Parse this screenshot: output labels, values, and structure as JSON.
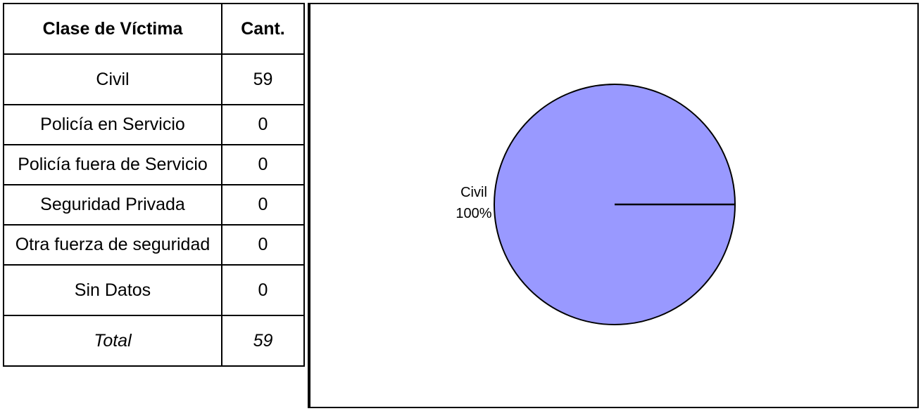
{
  "table": {
    "headers": [
      "Clase de Víctima",
      "Cant."
    ],
    "rows": [
      {
        "label": "Civil",
        "value": "59"
      },
      {
        "label": "Policía en Servicio",
        "value": "0"
      },
      {
        "label": "Policía fuera de Servicio",
        "value": "0"
      },
      {
        "label": "Seguridad Privada",
        "value": "0"
      },
      {
        "label": "Otra fuerza de seguridad",
        "value": "0"
      },
      {
        "label": "Sin Datos",
        "value": "0"
      }
    ],
    "total": {
      "label": "Total",
      "value": "59"
    }
  },
  "chart_data": {
    "type": "pie",
    "title": "",
    "slices": [
      {
        "label": "Civil",
        "value": 59,
        "percent_label": "100%",
        "color": "#9999ff"
      }
    ],
    "edge_color": "#000000"
  }
}
